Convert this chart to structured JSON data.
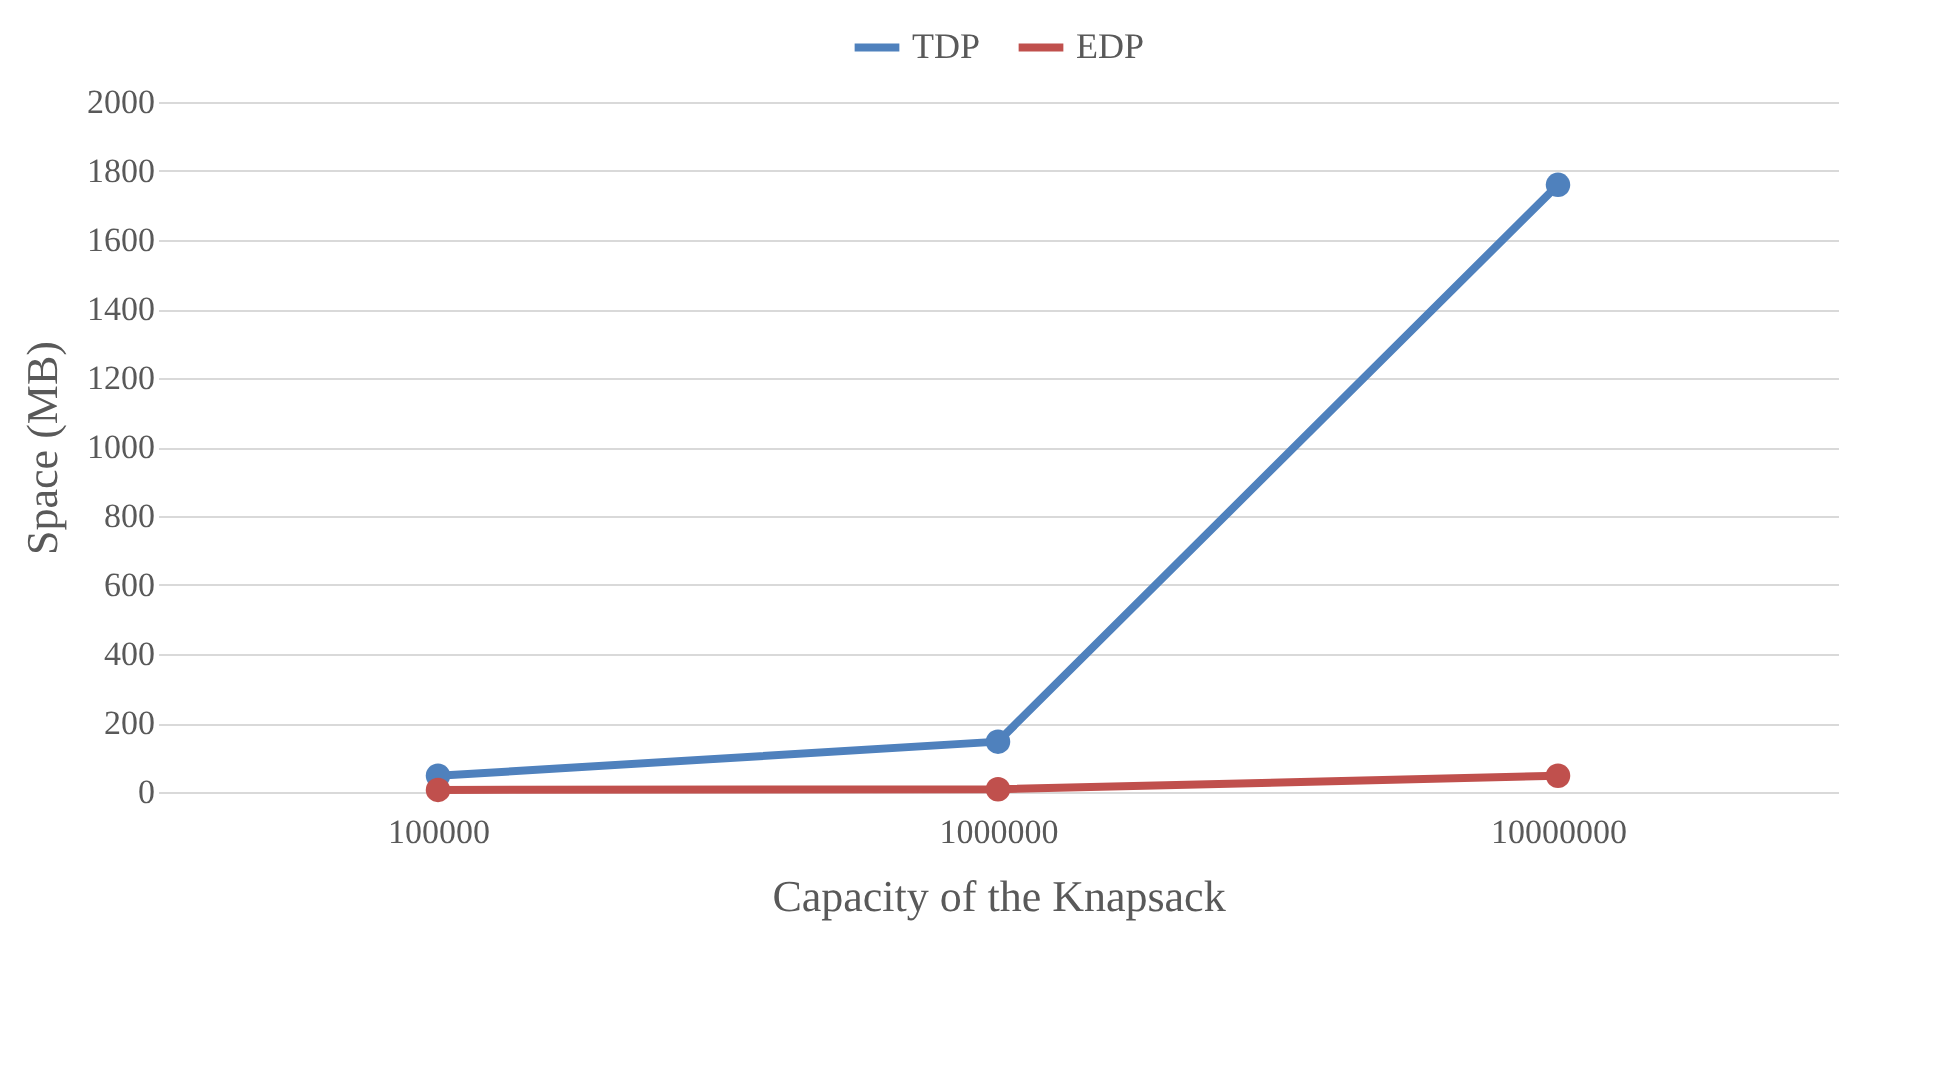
{
  "chart_data": {
    "type": "line",
    "xlabel": "Capacity of the Knapsack",
    "ylabel": "Space (MB)",
    "categories": [
      "100000",
      "1000000",
      "10000000"
    ],
    "series": [
      {
        "name": "TDP",
        "color": "#4f81bd",
        "values": [
          47,
          146,
          1760
        ]
      },
      {
        "name": "EDP",
        "color": "#c0504d",
        "values": [
          6,
          8,
          47
        ]
      }
    ],
    "ylim": [
      0,
      2000
    ],
    "yticks": [
      0,
      200,
      400,
      600,
      800,
      1000,
      1200,
      1400,
      1600,
      1800,
      2000
    ],
    "grid": "y",
    "legend": "top",
    "marker": "circle",
    "line_style": "solid"
  }
}
